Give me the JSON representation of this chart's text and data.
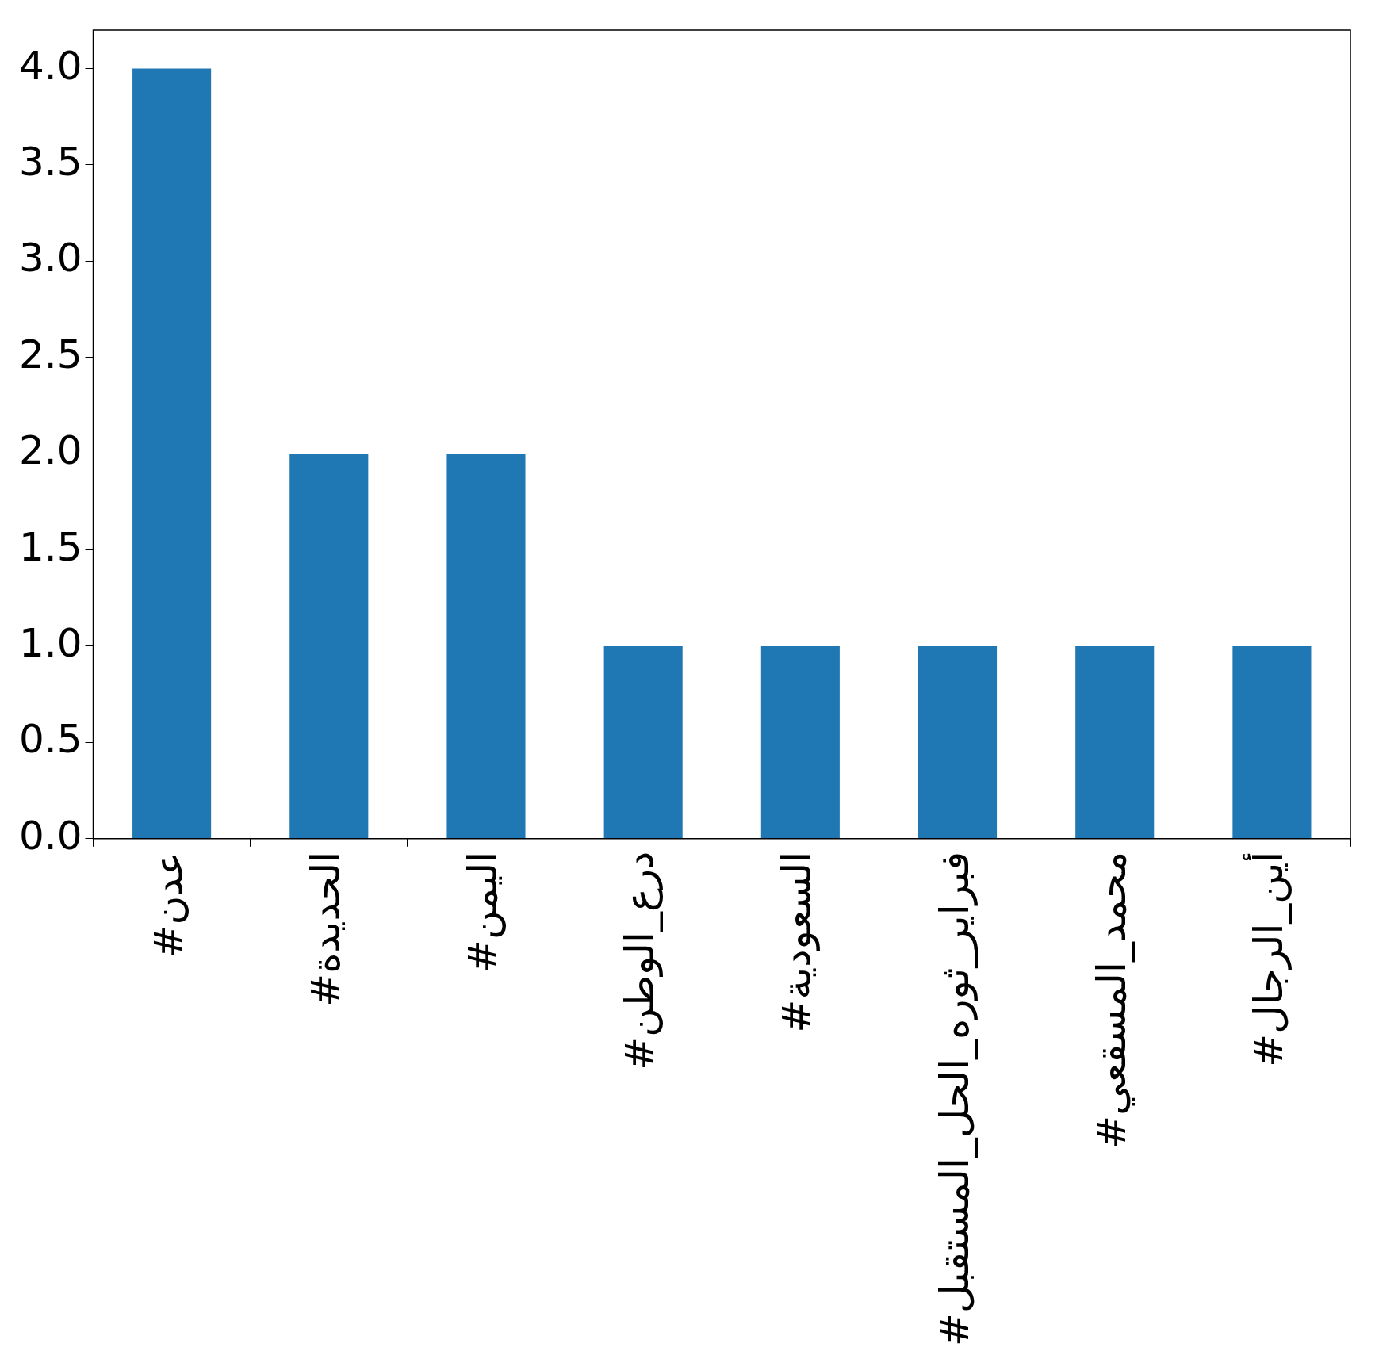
{
  "chart_data": {
    "type": "bar",
    "categories": [
      "#عدن",
      "#الحديدة",
      "#اليمن",
      "#درع_الوطن",
      "#السعودية",
      "#فبراير_ثوره_الحل_المستقبل",
      "#محمد_المسقعي",
      "#أين_الرجال"
    ],
    "values": [
      4,
      2,
      2,
      1,
      1,
      1,
      1,
      1
    ],
    "color": "#1f77b4",
    "ylim": [
      0,
      4.2
    ],
    "yticks": [
      {
        "value": 0,
        "label": "0.0"
      },
      {
        "value": 0.5,
        "label": "0.5"
      },
      {
        "value": 1,
        "label": "1.0"
      },
      {
        "value": 1.5,
        "label": "1.5"
      },
      {
        "value": 2,
        "label": "2.0"
      },
      {
        "value": 2.5,
        "label": "2.5"
      },
      {
        "value": 3,
        "label": "3.0"
      },
      {
        "value": 3.5,
        "label": "3.5"
      },
      {
        "value": 4,
        "label": "4.0"
      }
    ],
    "grid": false,
    "legend": false
  }
}
